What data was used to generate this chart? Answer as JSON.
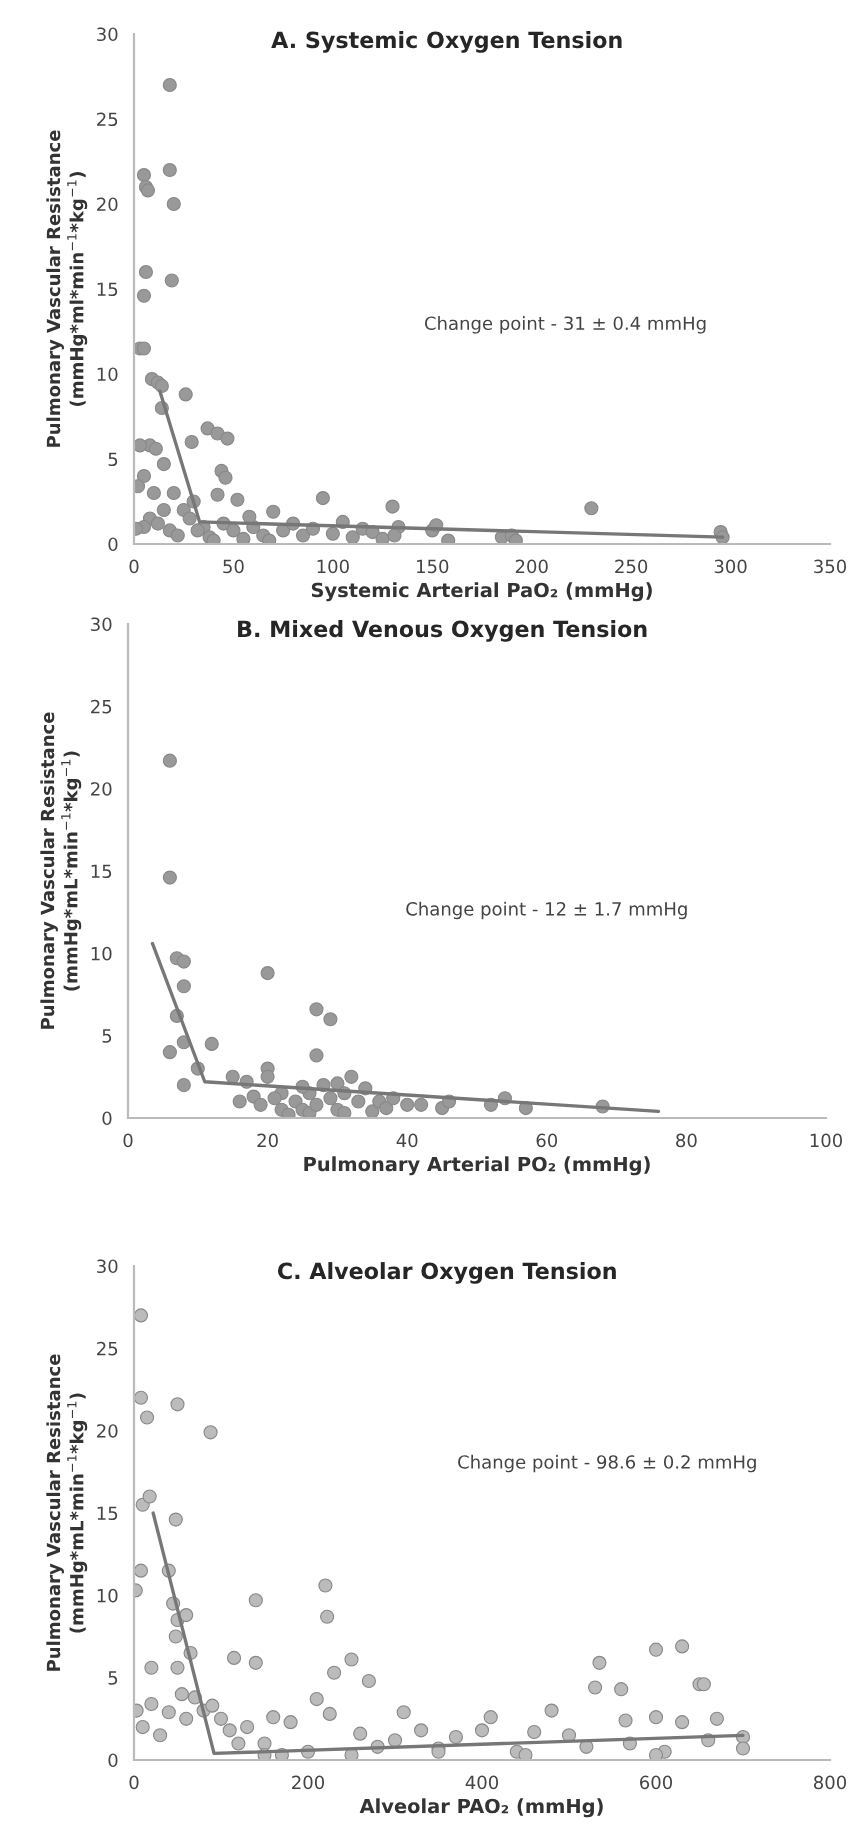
{
  "chart_data": [
    {
      "type": "scatter",
      "title": "A. Systemic Oxygen Tension",
      "xlabel": "Systemic Arterial PaO₂ (mmHg)",
      "ylabel": "Pulmonary Vascular Resistance\n(mmHg*ml*min$^{−1}$*kg$^{−1}$)",
      "annotations": [
        "Change point - 31 ± 0.4 mmHg"
      ],
      "xlim": [
        0,
        350
      ],
      "xticks": [
        0,
        50,
        100,
        150,
        200,
        250,
        300,
        350
      ],
      "ylim": [
        0,
        30
      ],
      "yticks": [
        0,
        5,
        10,
        15,
        20,
        25,
        30
      ],
      "marker": "circle",
      "series": [
        {
          "color": "#999999",
          "x": [
            5,
            6,
            7,
            18,
            18,
            20,
            19,
            6,
            5,
            3,
            5,
            9,
            12,
            14,
            14,
            26,
            8,
            3,
            11,
            15,
            5,
            2,
            29,
            37,
            42,
            47,
            44,
            46,
            42,
            52,
            30,
            10,
            20,
            25,
            15,
            8,
            5,
            1,
            12,
            18,
            22,
            35,
            38,
            45,
            50,
            55,
            60,
            65,
            70,
            75,
            80,
            85,
            90,
            95,
            100,
            105,
            110,
            115,
            120,
            125,
            130,
            133,
            131,
            150,
            152,
            158,
            185,
            190,
            192,
            230,
            295,
            296,
            28,
            32,
            40,
            58,
            68
          ],
          "values": [
            21.7,
            21,
            20.8,
            27,
            22,
            20,
            15.5,
            16,
            14.6,
            11.5,
            11.5,
            9.7,
            9.5,
            9.3,
            8,
            8.8,
            5.8,
            5.8,
            5.6,
            4.7,
            4,
            3.4,
            6,
            6.8,
            6.5,
            6.2,
            4.3,
            3.9,
            2.9,
            2.6,
            2.5,
            3,
            3,
            2,
            2,
            1.5,
            1,
            0.9,
            1.2,
            0.8,
            0.5,
            1,
            0.4,
            1.2,
            0.8,
            0.3,
            1,
            0.5,
            1.9,
            0.8,
            1.2,
            0.5,
            0.9,
            2.7,
            0.6,
            1.3,
            0.4,
            0.9,
            0.7,
            0.3,
            2.2,
            1,
            0.5,
            0.8,
            1.1,
            0.2,
            0.4,
            0.5,
            0.2,
            2.1,
            0.7,
            0.4,
            1.5,
            0.8,
            0.2,
            1.6,
            0.2
          ]
        },
        {
          "type": "line",
          "marker": "none",
          "color": "#777777",
          "x": [
            13,
            33,
            296
          ],
          "values": [
            9,
            1.3,
            0.4
          ]
        }
      ]
    },
    {
      "type": "scatter",
      "title": "B. Mixed Venous Oxygen Tension",
      "xlabel": "Pulmonary Arterial PO₂ (mmHg)",
      "ylabel": "Pulmonary Vascular Resistance\n(mmHg*mL*min$^{−1}$*kg$^{−1}$)",
      "annotations": [
        "Change point - 12 ± 1.7 mmHg"
      ],
      "xlim": [
        0,
        100
      ],
      "xticks": [
        0,
        20,
        40,
        60,
        80,
        100
      ],
      "ylim": [
        0,
        30
      ],
      "yticks": [
        0,
        5,
        10,
        15,
        20,
        25,
        30
      ],
      "marker": "circle",
      "series": [
        {
          "color": "#999999",
          "x": [
            6,
            6,
            7,
            8,
            8,
            7,
            6,
            8,
            8,
            10,
            12,
            20,
            27,
            29,
            27,
            20,
            15,
            17,
            18,
            19,
            20,
            22,
            22,
            23,
            24,
            25,
            26,
            26,
            27,
            28,
            29,
            30,
            30,
            31,
            31,
            32,
            33,
            34,
            35,
            36,
            37,
            38,
            40,
            42,
            45,
            46,
            52,
            54,
            57,
            68,
            16,
            21,
            25
          ],
          "values": [
            21.7,
            14.6,
            9.7,
            9.5,
            8,
            6.2,
            4,
            4.6,
            2,
            3,
            4.5,
            8.8,
            6.6,
            6,
            3.8,
            3,
            2.5,
            2.2,
            1.3,
            0.8,
            2.5,
            1.5,
            0.5,
            0.2,
            1,
            0.5,
            0.3,
            1.5,
            0.8,
            2,
            1.2,
            0.5,
            2.1,
            1.5,
            0.3,
            2.5,
            1,
            1.8,
            0.4,
            1,
            0.6,
            1.2,
            0.8,
            0.8,
            0.6,
            1,
            0.8,
            1.2,
            0.6,
            0.7,
            1,
            1.2,
            1.9
          ]
        },
        {
          "type": "line",
          "marker": "none",
          "color": "#777777",
          "x": [
            3.5,
            11,
            76
          ],
          "values": [
            10.6,
            2.2,
            0.4
          ]
        }
      ]
    },
    {
      "type": "scatter",
      "title": "C. Alveolar Oxygen Tension",
      "xlabel": "Alveolar PAO₂ (mmHg)",
      "ylabel": "Pulmonary Vascular Resistance\n(mmHg*mL*min$^{−1}$*kg$^{−1}$)",
      "annotations": [
        "Change point - 98.6 ± 0.2 mmHg"
      ],
      "xlim": [
        0,
        800
      ],
      "xticks": [
        0,
        200,
        400,
        600,
        800
      ],
      "ylim": [
        0,
        30
      ],
      "yticks": [
        0,
        5,
        10,
        15,
        20,
        25,
        30
      ],
      "marker": "circle",
      "series": [
        {
          "color": "#bbbbbb",
          "x": [
            2,
            8,
            8,
            15,
            10,
            18,
            8,
            50,
            48,
            88,
            20,
            40,
            45,
            50,
            48,
            50,
            55,
            60,
            65,
            70,
            80,
            90,
            3,
            10,
            20,
            30,
            40,
            60,
            100,
            110,
            115,
            120,
            140,
            140,
            130,
            150,
            160,
            170,
            180,
            200,
            210,
            220,
            222,
            225,
            230,
            250,
            260,
            270,
            280,
            300,
            310,
            330,
            350,
            370,
            400,
            410,
            440,
            460,
            480,
            500,
            520,
            530,
            535,
            560,
            565,
            570,
            600,
            600,
            610,
            630,
            630,
            650,
            655,
            660,
            670,
            700,
            700,
            150,
            250,
            350,
            450,
            600
          ],
          "values": [
            10.3,
            27,
            22,
            20.8,
            15.5,
            16,
            11.5,
            21.6,
            14.6,
            19.9,
            5.6,
            11.5,
            9.5,
            8.5,
            7.5,
            5.6,
            4,
            8.8,
            6.5,
            3.8,
            3,
            3.3,
            3,
            2,
            3.4,
            1.5,
            2.9,
            2.5,
            2.5,
            1.8,
            6.2,
            1,
            9.7,
            5.9,
            2,
            1,
            2.6,
            0.3,
            2.3,
            0.5,
            3.7,
            10.6,
            8.7,
            2.8,
            5.3,
            6.1,
            1.6,
            4.8,
            0.8,
            1.2,
            2.9,
            1.8,
            0.7,
            1.4,
            1.8,
            2.6,
            0.5,
            1.7,
            3,
            1.5,
            0.8,
            4.4,
            5.9,
            4.3,
            2.4,
            1,
            6.7,
            2.6,
            0.5,
            6.9,
            2.3,
            4.6,
            4.6,
            1.2,
            2.5,
            1.4,
            0.7,
            0.3,
            0.3,
            0.5,
            0.3,
            0.3
          ]
        },
        {
          "type": "line",
          "marker": "none",
          "color": "#777777",
          "x": [
            22,
            92,
            700
          ],
          "values": [
            15,
            0.4,
            1.5
          ]
        }
      ]
    }
  ]
}
